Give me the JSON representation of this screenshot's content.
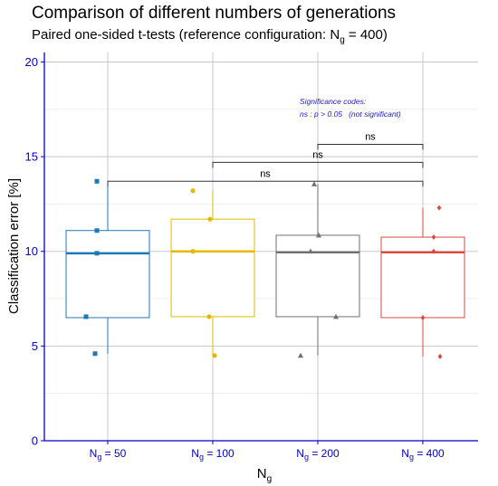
{
  "title": "Comparison of different numbers of generations",
  "subtitle": {
    "pre": "Paired one-sided t-tests  (reference configuration: N",
    "sub": "g",
    "post": " = 400)"
  },
  "significance": {
    "heading": "Significance codes:",
    "line": "ns : p > 0.05   (not significant)",
    "color": "#1a1acc"
  },
  "chart_data": {
    "type": "box",
    "title": "Comparison of different numbers of generations",
    "xlabel": "Ng",
    "ylabel": "Classification error [%]",
    "ylim": [
      0,
      20.5
    ],
    "yticks": [
      0,
      5,
      10,
      15,
      20
    ],
    "grid": true,
    "categories": [
      {
        "main": "N",
        "sub": "g",
        "rest": " = 50"
      },
      {
        "main": "N",
        "sub": "g",
        "rest": " = 100"
      },
      {
        "main": "N",
        "sub": "g",
        "rest": " = 200"
      },
      {
        "main": "N",
        "sub": "g",
        "rest": " = 400"
      }
    ],
    "series": [
      {
        "color": "#1f78b4",
        "marker": "square",
        "q1": 6.5,
        "median": 9.9,
        "q3": 11.1,
        "whisker_low": 4.6,
        "whisker_high": 13.7,
        "points": [
          13.7,
          11.1,
          9.9,
          6.55,
          4.6
        ]
      },
      {
        "color": "#e6b800",
        "marker": "circle",
        "q1": 6.55,
        "median": 10.0,
        "q3": 11.7,
        "whisker_low": 4.5,
        "whisker_high": 13.2,
        "points": [
          13.2,
          11.7,
          10.0,
          6.55,
          4.5
        ]
      },
      {
        "color": "#707070",
        "marker": "triangle",
        "q1": 6.55,
        "median": 9.95,
        "q3": 10.85,
        "whisker_low": 4.5,
        "whisker_high": 13.55,
        "points": [
          13.55,
          10.85,
          10.0,
          6.55,
          4.5
        ]
      },
      {
        "color": "#d94a3f",
        "marker": "diamond",
        "q1": 6.5,
        "median": 9.95,
        "q3": 10.75,
        "whisker_low": 4.45,
        "whisker_high": 12.3,
        "points": [
          12.3,
          10.75,
          10.0,
          6.5,
          4.45
        ]
      }
    ],
    "comparisons": [
      {
        "from": 0,
        "to": 3,
        "y": 13.7,
        "label": "ns"
      },
      {
        "from": 1,
        "to": 3,
        "y": 14.7,
        "label": "ns"
      },
      {
        "from": 2,
        "to": 3,
        "y": 15.65,
        "label": "ns"
      }
    ],
    "axis_color": "#0000cc",
    "grid_color": "#c8c8c8"
  }
}
